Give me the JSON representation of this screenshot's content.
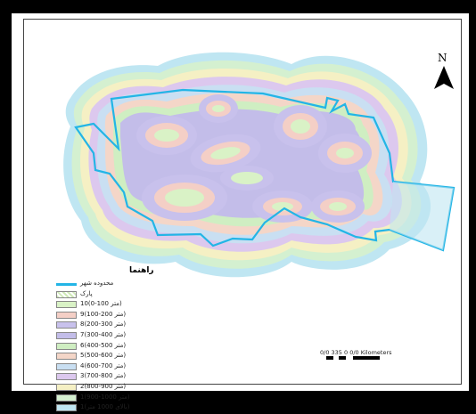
{
  "map": {
    "north_label": "N",
    "legend_title": "راهنما",
    "legend": [
      {
        "label": "محدوده شهر",
        "kind": "line",
        "color": "#23b5e6"
      },
      {
        "label": "پارک",
        "kind": "hatch",
        "color": "#d8efc8"
      },
      {
        "label": "10(0-100 متر)",
        "kind": "swatch",
        "color": "#d9f2c6"
      },
      {
        "label": "9(100-200 متر)",
        "kind": "swatch",
        "color": "#f4cfc6"
      },
      {
        "label": "8(200-300 متر)",
        "kind": "swatch",
        "color": "#c8c1ec"
      },
      {
        "label": "7(300-400 متر)",
        "kind": "swatch",
        "color": "#c3bde9"
      },
      {
        "label": "6(400-500 متر)",
        "kind": "swatch",
        "color": "#cfeec2"
      },
      {
        "label": "5(500-600 متر)",
        "kind": "swatch",
        "color": "#f4d6c8"
      },
      {
        "label": "4(600-700 متر)",
        "kind": "swatch",
        "color": "#c9dff2"
      },
      {
        "label": "3(700-800 متر)",
        "kind": "swatch",
        "color": "#dcc8ee"
      },
      {
        "label": "2(800-900 متر)",
        "kind": "swatch",
        "color": "#f5f0c4"
      },
      {
        "label": "1(900-1000 متر)",
        "kind": "swatch",
        "color": "#d4f0d0"
      },
      {
        "label": "1(بالای 1000 متر)",
        "kind": "swatch",
        "color": "#bfe6f2"
      }
    ],
    "scale": {
      "label": "0/0 335  0        0/0 Kilometers"
    },
    "colors": {
      "boundary": "#23b5e6",
      "ring_colors": [
        "#bfe6f2",
        "#d4f0d0",
        "#f5f0c4",
        "#dcc8ee",
        "#c9dff2",
        "#f4d6c8",
        "#cfeec2",
        "#c3bde9",
        "#c8c1ec",
        "#f4cfc6",
        "#d9f2c6"
      ]
    }
  }
}
